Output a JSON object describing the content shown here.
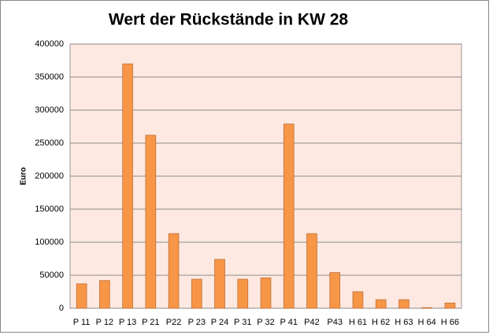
{
  "chart_data": {
    "type": "bar",
    "title": "Wert der Rückstände in KW 28",
    "y_label": "Euro",
    "categories": [
      "P 11",
      "P 12",
      "P 13",
      "P 21",
      "P22",
      "P 23",
      "P 24",
      "P 31",
      "P 32",
      "P 41",
      "P42",
      "P43",
      "H 61",
      "H 62",
      "H 63",
      "H 64",
      "H 66"
    ],
    "values": [
      37000,
      42000,
      370000,
      262000,
      113000,
      44000,
      74000,
      44000,
      46000,
      279000,
      113000,
      54000,
      25000,
      13000,
      13000,
      1000,
      8000
    ],
    "color": "#f79646",
    "ylim": [
      0,
      400000
    ],
    "yticks": [
      0,
      50000,
      100000,
      150000,
      200000,
      250000,
      300000,
      350000,
      400000
    ],
    "grid": true
  }
}
